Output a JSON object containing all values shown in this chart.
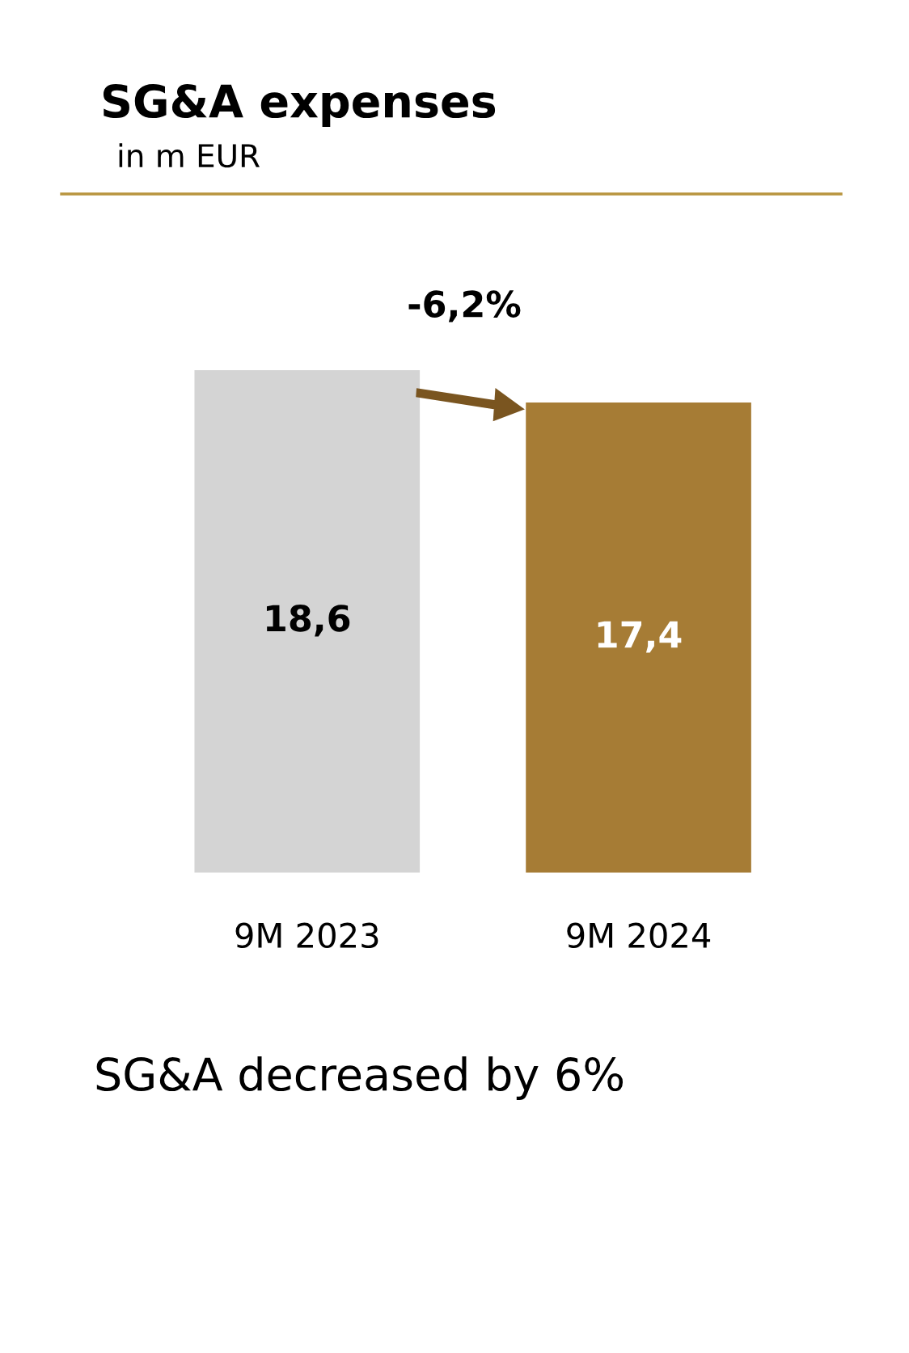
{
  "chart_data": {
    "type": "bar",
    "title": "SG&A expenses",
    "subtitle": "in m EUR",
    "categories": [
      "9M 2023",
      "9M 2024"
    ],
    "values": [
      18.6,
      17.4
    ],
    "colors": [
      "#d4d4d4",
      "#a67c35"
    ],
    "value_labels": [
      "18,6",
      "17,4"
    ],
    "annotations": [
      "-6,2%",
      "SG&A decreased by 6%"
    ],
    "grid": false,
    "legend": false
  }
}
